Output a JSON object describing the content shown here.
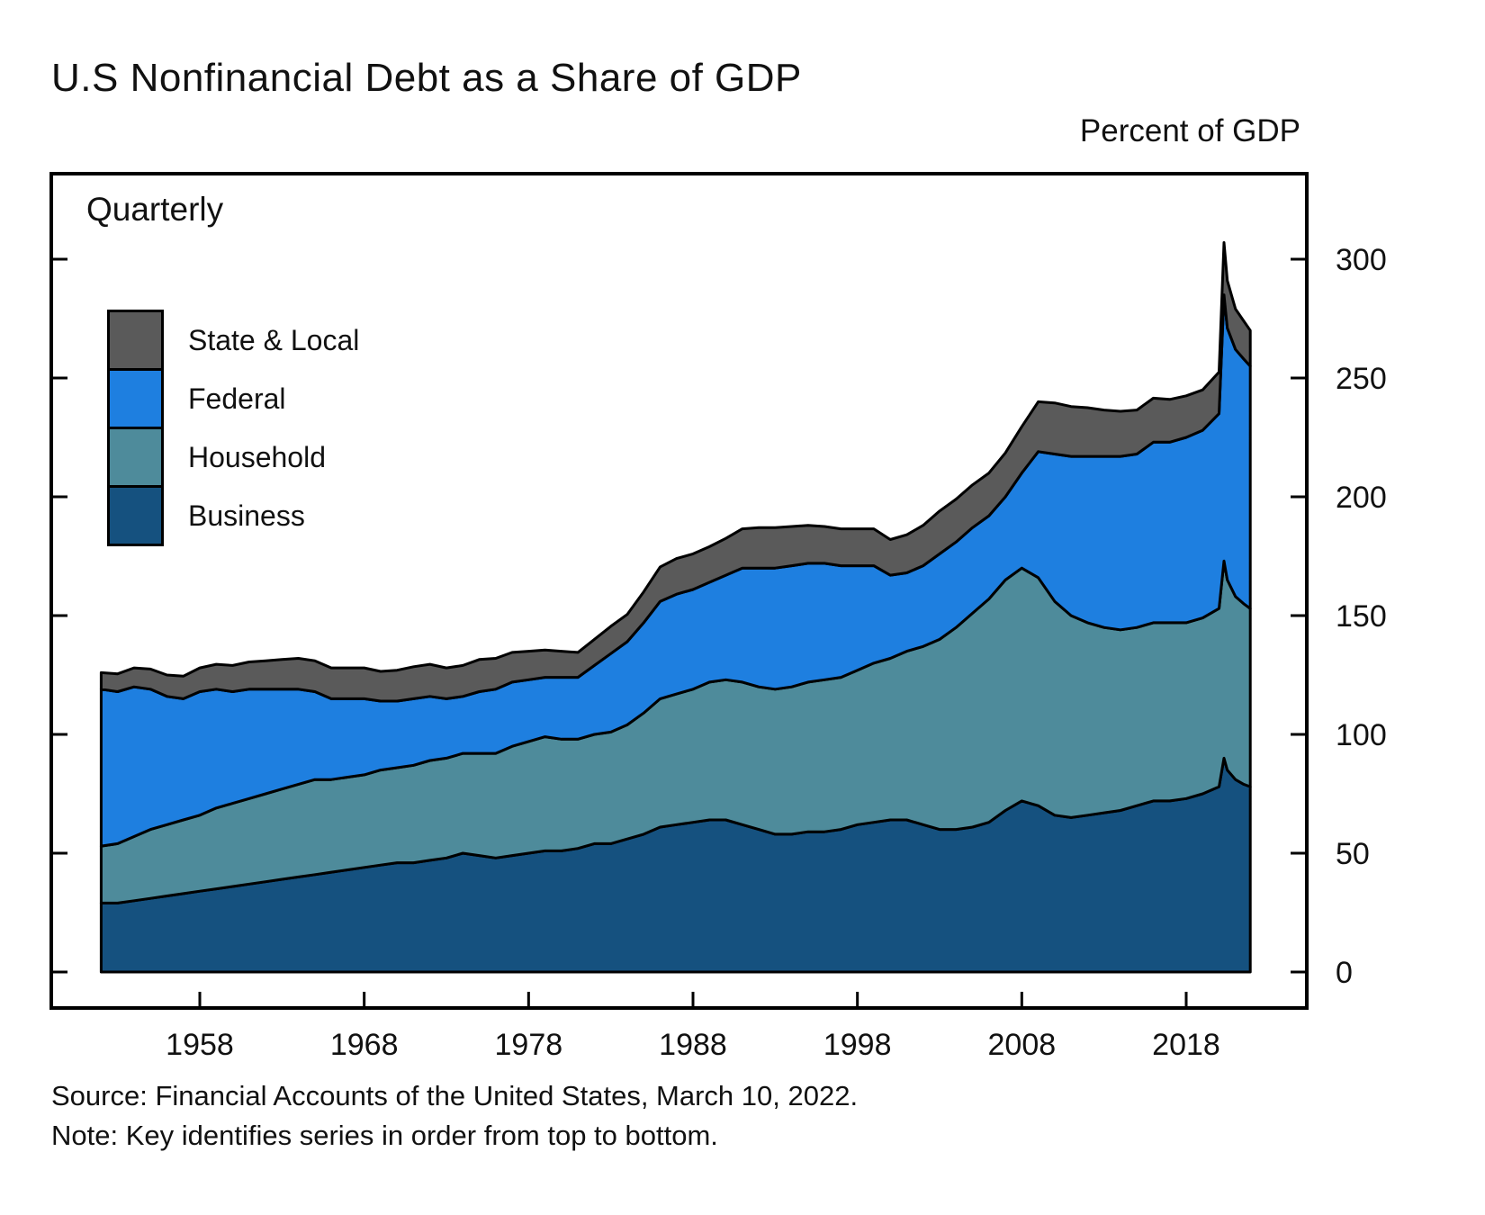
{
  "header": {
    "title": "U.S Nonfinancial Debt as a Share of GDP",
    "right_axis_title": "Percent of GDP"
  },
  "plot": {
    "frequency_label": "Quarterly"
  },
  "legend": [
    {
      "label": "State & Local",
      "color": "#5a5a5a"
    },
    {
      "label": "Federal",
      "color": "#1e7fe0"
    },
    {
      "label": "Household",
      "color": "#4e8b9b"
    },
    {
      "label": "Business",
      "color": "#15517f"
    }
  ],
  "footer": {
    "source": "Source: Financial Accounts of the United States, March 10, 2022.",
    "note": "Note: Key identifies series in order from top to bottom."
  },
  "chart_data": {
    "type": "area",
    "stacked": true,
    "stack_order": "bottom-to-top",
    "title": "U.S Nonfinancial Debt as a Share of GDP",
    "ylabel": "Percent of GDP",
    "frequency": "Quarterly",
    "xticks": [
      1958,
      1968,
      1978,
      1988,
      1998,
      2008,
      2018
    ],
    "yticks": [
      0,
      50,
      100,
      150,
      200,
      250,
      300
    ],
    "ylim": [
      0,
      320
    ],
    "xlim": [
      1952,
      2022
    ],
    "line_color": "#000000",
    "x": [
      1952,
      1953,
      1954,
      1955,
      1956,
      1957,
      1958,
      1959,
      1960,
      1961,
      1962,
      1963,
      1964,
      1965,
      1966,
      1967,
      1968,
      1969,
      1970,
      1971,
      1972,
      1973,
      1974,
      1975,
      1976,
      1977,
      1978,
      1979,
      1980,
      1981,
      1982,
      1983,
      1984,
      1985,
      1986,
      1987,
      1988,
      1989,
      1990,
      1991,
      1992,
      1993,
      1994,
      1995,
      1996,
      1997,
      1998,
      1999,
      2000,
      2001,
      2002,
      2003,
      2004,
      2005,
      2006,
      2007,
      2008,
      2009,
      2010,
      2011,
      2012,
      2013,
      2014,
      2015,
      2016,
      2017,
      2018,
      2019,
      2020,
      2020.3,
      2020.5,
      2021,
      2021.5,
      2021.9
    ],
    "series": [
      {
        "name": "Business",
        "color": "#15517f",
        "values": [
          29,
          29,
          30,
          31,
          32,
          33,
          34,
          35,
          36,
          37,
          38,
          39,
          40,
          41,
          42,
          43,
          44,
          45,
          46,
          46,
          47,
          48,
          50,
          49,
          48,
          49,
          50,
          51,
          51,
          52,
          54,
          54,
          56,
          58,
          61,
          62,
          63,
          64,
          64,
          62,
          60,
          58,
          58,
          59,
          59,
          60,
          62,
          63,
          64,
          64,
          62,
          60,
          60,
          61,
          63,
          68,
          72,
          70,
          66,
          65,
          66,
          67,
          68,
          70,
          72,
          72,
          73,
          75,
          78,
          90,
          85,
          81,
          79,
          78
        ]
      },
      {
        "name": "Household",
        "color": "#4e8b9b",
        "values": [
          24,
          25,
          27,
          29,
          30,
          31,
          32,
          34,
          35,
          36,
          37,
          38,
          39,
          40,
          39,
          39,
          39,
          40,
          40,
          41,
          42,
          42,
          42,
          43,
          44,
          46,
          47,
          48,
          47,
          46,
          46,
          47,
          48,
          51,
          54,
          55,
          56,
          58,
          59,
          60,
          60,
          61,
          62,
          63,
          64,
          64,
          65,
          67,
          68,
          71,
          75,
          80,
          85,
          90,
          94,
          97,
          98,
          96,
          90,
          85,
          81,
          78,
          76,
          75,
          75,
          75,
          74,
          74,
          75,
          83,
          80,
          77,
          76,
          75
        ]
      },
      {
        "name": "Federal",
        "color": "#1e7fe0",
        "values": [
          66,
          64,
          63,
          59,
          54,
          51,
          52,
          50,
          47,
          46,
          44,
          42,
          40,
          37,
          34,
          33,
          32,
          29,
          28,
          28,
          27,
          25,
          24,
          26,
          27,
          27,
          26,
          25,
          26,
          26,
          29,
          33,
          35,
          38,
          41,
          42,
          42,
          42,
          44,
          48,
          50,
          51,
          51,
          50,
          49,
          47,
          44,
          41,
          35,
          33,
          34,
          36,
          36,
          36,
          35,
          35,
          40,
          53,
          62,
          67,
          70,
          72,
          73,
          73,
          76,
          76,
          78,
          79,
          82,
          112,
          106,
          104,
          103,
          102
        ]
      },
      {
        "name": "State & Local",
        "color": "#5a5a5a",
        "values": [
          7,
          7.5,
          8,
          8.5,
          9,
          9.5,
          10,
          10.5,
          11,
          11.5,
          12,
          12.5,
          13,
          13,
          13,
          13,
          13,
          12.5,
          13,
          13.5,
          13.5,
          13,
          13,
          13.5,
          13,
          12.5,
          12,
          11.5,
          11,
          10.5,
          11,
          11.5,
          11.5,
          13,
          14.5,
          15,
          15,
          15,
          15.5,
          16.5,
          17,
          17,
          16.5,
          16,
          15.5,
          15.5,
          15.5,
          15.5,
          15,
          16,
          17,
          18,
          18,
          18,
          18,
          18.5,
          19.5,
          21,
          21.5,
          21,
          20.5,
          19.5,
          19,
          18.5,
          18.5,
          18,
          17.5,
          17,
          17.5,
          22,
          20,
          17,
          16,
          15
        ]
      }
    ]
  }
}
